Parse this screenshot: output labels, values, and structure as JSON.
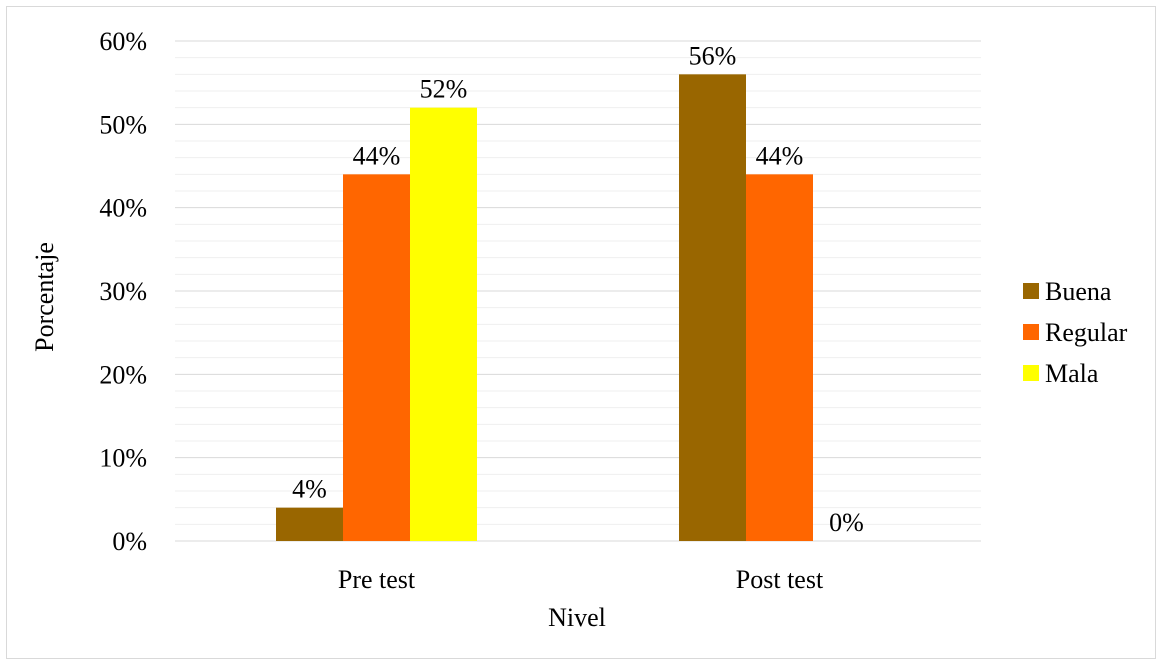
{
  "chart_data": {
    "type": "bar",
    "title": "",
    "xlabel": "Nivel",
    "ylabel": "Porcentaje",
    "categories": [
      "Pre test",
      "Post test"
    ],
    "series": [
      {
        "name": "Buena",
        "color": "#996600",
        "values": [
          4,
          56
        ],
        "labels": [
          "4%",
          "56%"
        ]
      },
      {
        "name": "Regular",
        "color": "#ff6600",
        "values": [
          44,
          44
        ],
        "labels": [
          "44%",
          "44%"
        ]
      },
      {
        "name": "Mala",
        "color": "#ffff00",
        "values": [
          52,
          0
        ],
        "labels": [
          "52%",
          "0%"
        ]
      }
    ],
    "ylim": [
      0,
      60
    ],
    "yticks": [
      0,
      10,
      20,
      30,
      40,
      50,
      60
    ],
    "ytick_labels": [
      "0%",
      "10%",
      "20%",
      "30%",
      "40%",
      "50%",
      "60%"
    ],
    "grid": "major and minor horizontal",
    "legend": "right"
  }
}
